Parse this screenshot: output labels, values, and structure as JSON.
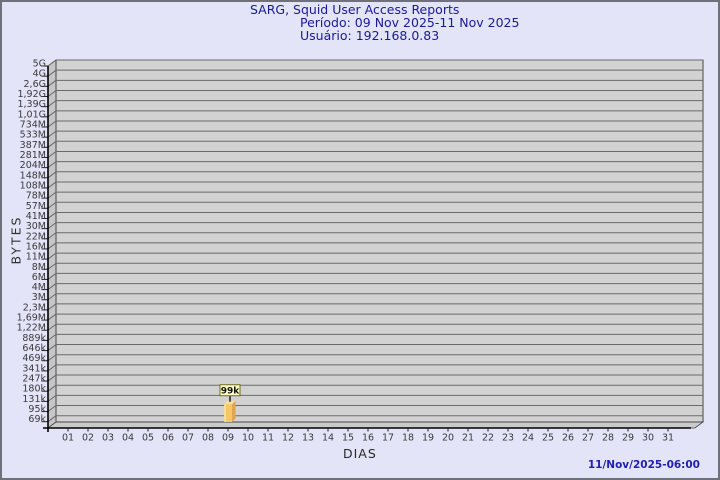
{
  "header": {
    "title": "SARG, Squid User Access Reports",
    "period": "Período: 09 Nov 2025-11 Nov 2025",
    "user": "Usuário: 192.168.0.83",
    "title_color": "#1A1A96"
  },
  "footer": {
    "timestamp": "11/Nov/2025-06:00",
    "color": "#2020B0"
  },
  "chart_data": {
    "type": "bar",
    "title": "SARG, Squid User Access Reports",
    "subtitle": [
      "Período: 09 Nov 2025-11 Nov 2025",
      "Usuário: 192.168.0.83"
    ],
    "xlabel": "DIAS",
    "ylabel": "BYTES",
    "y_scale": "log",
    "grid": true,
    "legend": "none",
    "y_tick_labels": [
      "5G",
      "4G",
      "2,6G",
      "1,92G",
      "1,39G",
      "1,01G",
      "734M",
      "533M",
      "387M",
      "281M",
      "204M",
      "148M",
      "108M",
      "78M",
      "57M",
      "41M",
      "30M",
      "22M",
      "16M",
      "11M",
      "8M",
      "6M",
      "4M",
      "3M",
      "2,3M",
      "1,69M",
      "1,22M",
      "889k",
      "646k",
      "469k",
      "341k",
      "247k",
      "180k",
      "131k",
      "95k",
      "69k"
    ],
    "x_tick_labels": [
      "01",
      "02",
      "03",
      "04",
      "05",
      "06",
      "07",
      "08",
      "09",
      "10",
      "11",
      "12",
      "13",
      "14",
      "15",
      "16",
      "17",
      "18",
      "19",
      "20",
      "21",
      "22",
      "23",
      "24",
      "25",
      "26",
      "27",
      "28",
      "29",
      "30",
      "31"
    ],
    "bars": [
      {
        "x": "09",
        "label": "99k",
        "value": 99000
      }
    ],
    "footer_timestamp": "11/Nov/2025-06:00",
    "colors": {
      "page_bg": "#E4E4F8",
      "frame_border": "#70707A",
      "title": "#1A1A96",
      "timestamp": "#2020B0",
      "plot_bg": "#D2D2D2",
      "grid_line": "#6A6A6A",
      "wall": "#C6C6C8",
      "floor": "#CACACC",
      "axis_line": "#000000",
      "tick_text": "#3A3A3A",
      "bar_front": "#F7C766",
      "bar_top": "#FBDE9B",
      "bar_side": "#E2A44C",
      "bar_highlight": "#FCE4AB",
      "label_box_bg": "#FFFFC8",
      "label_box_border": "#6E6E14"
    }
  }
}
